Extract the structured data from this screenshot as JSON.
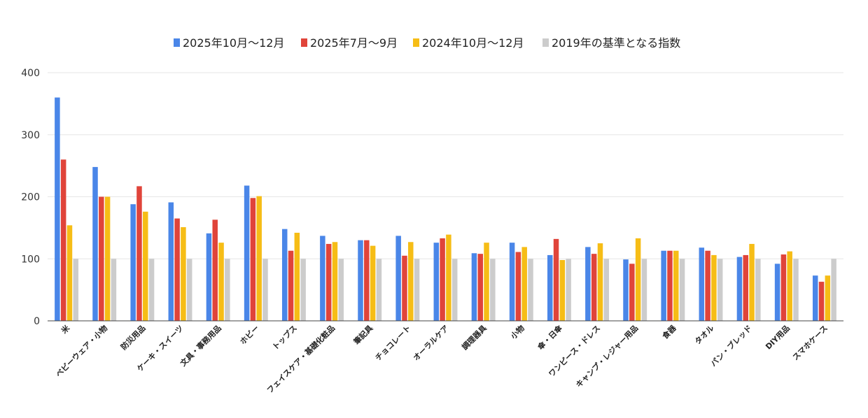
{
  "chart_data": {
    "type": "bar",
    "title": "",
    "xlabel": "",
    "ylabel": "",
    "ylim": [
      0,
      400
    ],
    "yticks": [
      0,
      100,
      200,
      300,
      400
    ],
    "grid": true,
    "legend_position": "top",
    "categories": [
      "米",
      "ベビーウェア・小物",
      "防災用品",
      "ケーキ・スイーツ",
      "文具・事務用品",
      "ホビー",
      "トップス",
      "フェイスケア・基礎化粧品",
      "筆記具",
      "チョコレート",
      "オーラルケア",
      "調理器具",
      "小物",
      "傘・日傘",
      "ワンピース・ドレス",
      "キャンプ・レジャー用品",
      "食器",
      "タオル",
      "パン・ブレッド",
      "DIY用品",
      "スマホケース"
    ],
    "series": [
      {
        "name": "2025年10月～12月",
        "color": "#4a86e8",
        "values": [
          360,
          248,
          188,
          191,
          141,
          218,
          148,
          137,
          130,
          137,
          126,
          109,
          126,
          106,
          119,
          99,
          113,
          118,
          103,
          92,
          73
        ]
      },
      {
        "name": "2025年7月～9月",
        "color": "#e0443a",
        "values": [
          260,
          200,
          217,
          165,
          163,
          198,
          113,
          124,
          130,
          105,
          133,
          108,
          111,
          132,
          108,
          92,
          113,
          113,
          106,
          107,
          63
        ]
      },
      {
        "name": "2024年10月～12月",
        "color": "#f6bd16",
        "values": [
          154,
          200,
          176,
          151,
          126,
          201,
          142,
          127,
          121,
          127,
          139,
          126,
          119,
          98,
          125,
          133,
          113,
          106,
          124,
          112,
          73
        ]
      },
      {
        "name": "2019年の基準となる指数",
        "color": "#cccccc",
        "values": [
          100,
          100,
          100,
          100,
          100,
          100,
          100,
          100,
          100,
          100,
          100,
          100,
          100,
          100,
          100,
          100,
          100,
          100,
          100,
          100,
          100
        ]
      }
    ]
  }
}
